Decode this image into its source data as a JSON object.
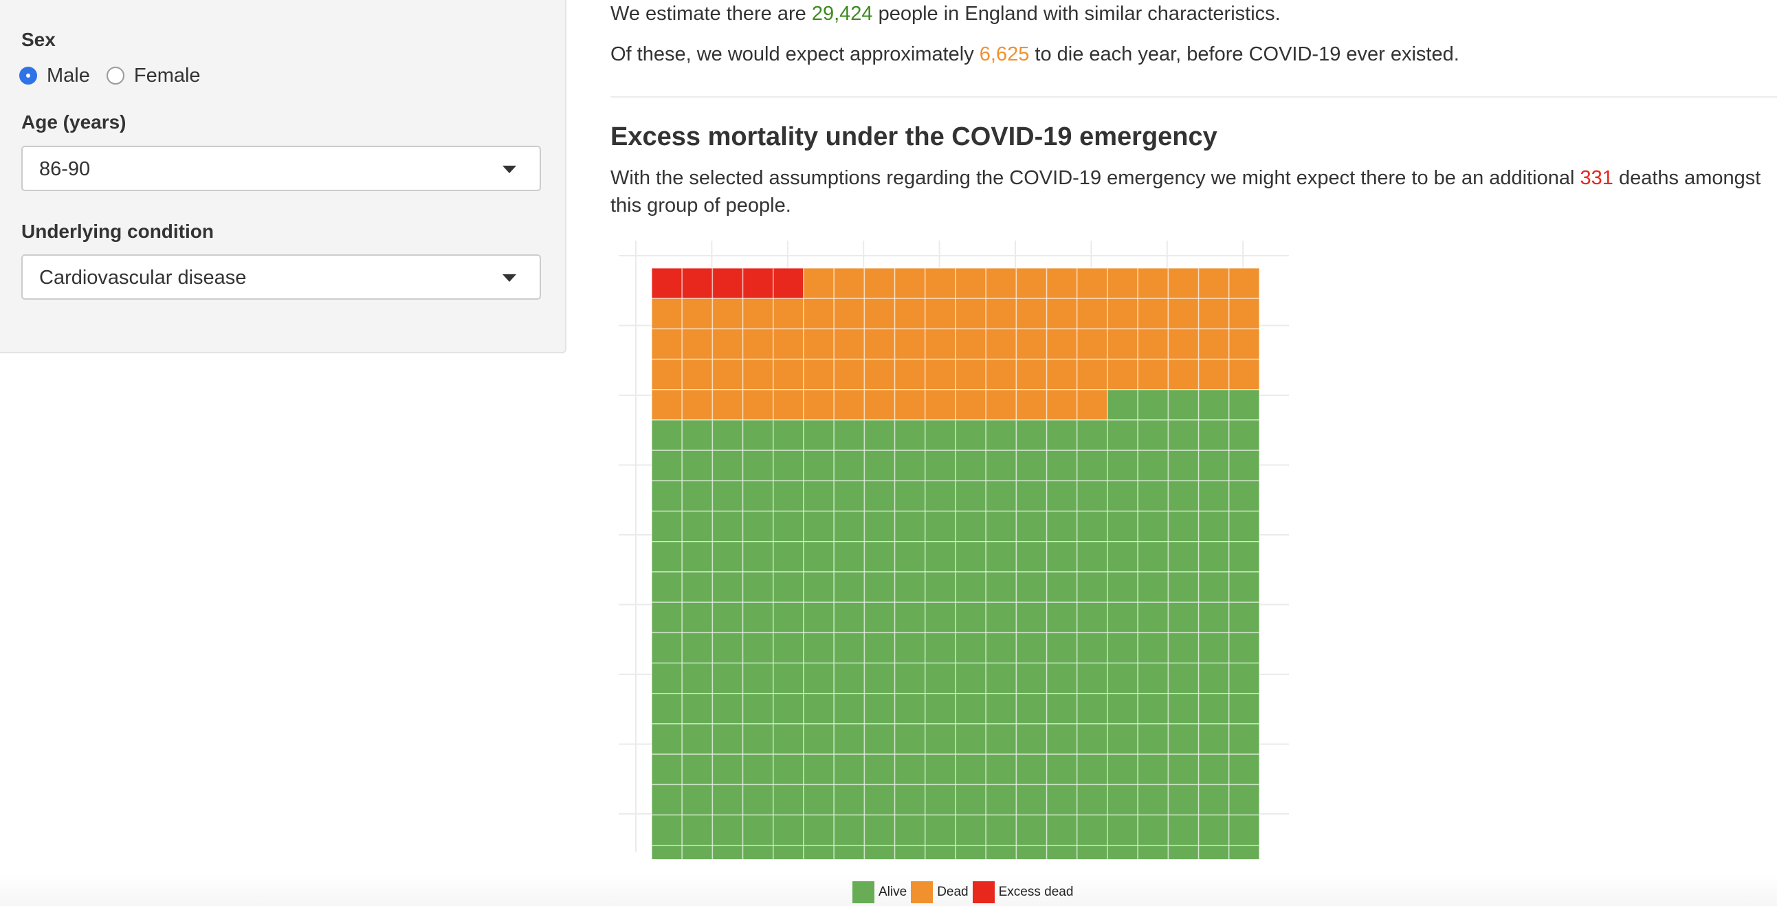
{
  "sidebar": {
    "sex_label": "Sex",
    "sex_options": [
      {
        "label": "Male",
        "checked": true
      },
      {
        "label": "Female",
        "checked": false
      }
    ],
    "age_label": "Age (years)",
    "age_value": "86-90",
    "condition_label": "Underlying condition",
    "condition_value": "Cardiovascular disease"
  },
  "summary": {
    "line1_pre": "We estimate there are",
    "population": "29,424",
    "line1_post": "people in England with similar characteristics.",
    "line2_pre": "Of these, we would expect approximately",
    "expected_deaths": "6,625",
    "line2_post": "to die each year, before COVID-19 ever existed."
  },
  "excess": {
    "title": "Excess mortality under the COVID-19 emergency",
    "text_pre": "With the selected assumptions regarding the COVID-19 emergency we might expect there to be an additional",
    "excess_deaths": "331",
    "text_post": "deaths amongst this group of people."
  },
  "colors": {
    "alive": "#68ad56",
    "dead": "#f0912e",
    "excess": "#e8281d",
    "highlight_green": "#3d8a1f"
  },
  "chart_data": {
    "type": "waffle",
    "columns": 20,
    "rows": 20,
    "categories": [
      "Excess dead",
      "Dead",
      "Alive"
    ],
    "values": [
      5,
      90,
      305
    ],
    "legend": [
      "Alive",
      "Dead",
      "Excess dead"
    ],
    "legend_position": "bottom"
  }
}
